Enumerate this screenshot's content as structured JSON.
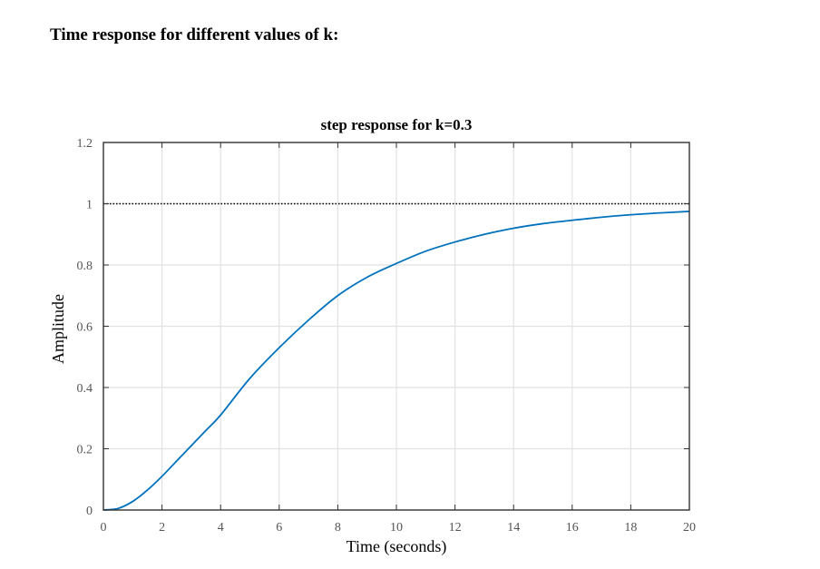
{
  "heading": "Time response for different values of k:",
  "chart_data": {
    "type": "line",
    "title": "step response for k=0.3",
    "xlabel": "Time (seconds)",
    "ylabel": "Amplitude",
    "xlim": [
      0,
      20
    ],
    "ylim": [
      0,
      1.2
    ],
    "xticks": [
      0,
      2,
      4,
      6,
      8,
      10,
      12,
      14,
      16,
      18,
      20
    ],
    "yticks": [
      0,
      0.2,
      0.4,
      0.6,
      0.8,
      1,
      1.2
    ],
    "xtick_labels": [
      "0",
      "2",
      "4",
      "6",
      "8",
      "10",
      "12",
      "14",
      "16",
      "18",
      "20"
    ],
    "ytick_labels": [
      "0",
      "0.2",
      "0.4",
      "0.6",
      "0.8",
      "1",
      "1.2"
    ],
    "grid": true,
    "reference_line": {
      "y": 1,
      "style": "dotted",
      "color": "#000000"
    },
    "series": [
      {
        "color": "#0072BD",
        "x": [
          0,
          0.5,
          1,
          1.5,
          2,
          2.5,
          3,
          3.5,
          4,
          5,
          6,
          7,
          8,
          9,
          10,
          11,
          12,
          13,
          14,
          15,
          16,
          17,
          18,
          19,
          20
        ],
        "y": [
          0,
          0.005,
          0.028,
          0.065,
          0.11,
          0.16,
          0.21,
          0.26,
          0.31,
          0.43,
          0.53,
          0.62,
          0.7,
          0.76,
          0.805,
          0.845,
          0.875,
          0.9,
          0.92,
          0.935,
          0.946,
          0.956,
          0.964,
          0.97,
          0.975
        ]
      }
    ]
  }
}
